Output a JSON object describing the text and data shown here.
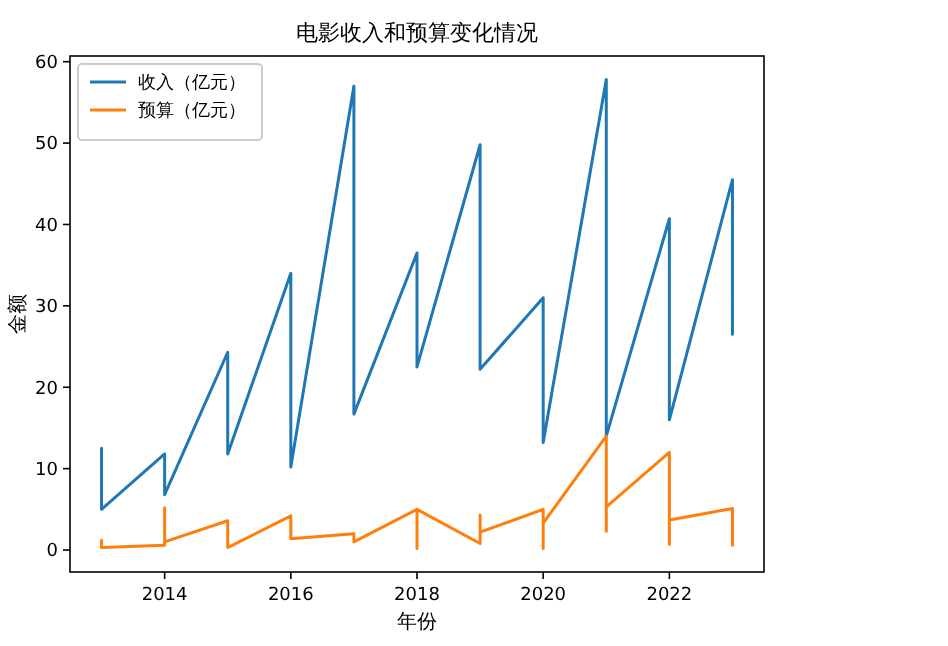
{
  "chart_data": {
    "type": "line",
    "title": "电影收入和预算变化情况",
    "xlabel": "年份",
    "ylabel": "金额",
    "legend": "top left",
    "xlim": [
      2012.5,
      2023.5
    ],
    "ylim": [
      -2.7,
      60.7
    ],
    "xticks": [
      2014,
      2016,
      2018,
      2020,
      2022
    ],
    "yticks": [
      0,
      10,
      20,
      30,
      40,
      50,
      60
    ],
    "series": [
      {
        "name": "收入（亿元）",
        "color": "#1f77b4",
        "x": [
          2013,
          2013,
          2014,
          2014,
          2015,
          2015,
          2016,
          2016,
          2017,
          2017,
          2018,
          2018,
          2019,
          2019,
          2020,
          2020,
          2021,
          2021,
          2022,
          2022,
          2023,
          2023
        ],
        "values": [
          12.5,
          5,
          11.8,
          6.8,
          24.3,
          11.8,
          34,
          10.2,
          57,
          16.7,
          36.5,
          22.5,
          49.8,
          22.2,
          31,
          13.2,
          57.8,
          14,
          40.7,
          16,
          45.5,
          26.5
        ]
      },
      {
        "name": "预算（亿元）",
        "color": "#ff7f0e",
        "x": [
          2013,
          2013,
          2014,
          2014,
          2014,
          2015,
          2015,
          2016,
          2016,
          2017,
          2017,
          2018,
          2018,
          2018,
          2019,
          2019,
          2019,
          2020,
          2020,
          2020,
          2021,
          2021,
          2021,
          2022,
          2022,
          2022,
          2023,
          2023,
          2023
        ],
        "values": [
          1.2,
          0.3,
          0.6,
          5.2,
          1,
          3.6,
          0.3,
          4.2,
          1.4,
          2,
          1,
          5,
          0.2,
          5,
          0.8,
          4.3,
          2.2,
          5,
          0.2,
          3.3,
          14,
          2.3,
          5.3,
          12,
          0.7,
          3.7,
          5.1,
          0.6,
          2
        ]
      }
    ]
  }
}
